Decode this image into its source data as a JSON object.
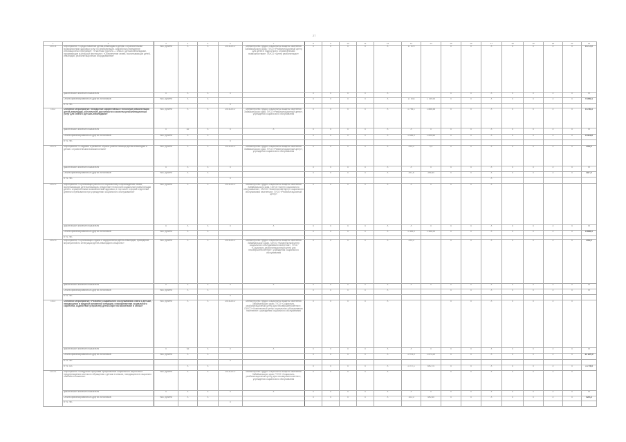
{
  "page_number": "27",
  "header": [
    "1",
    "2",
    "3",
    "4",
    "5",
    "6",
    "7",
    "8",
    "9",
    "10",
    "11",
    "12",
    "13",
    "14",
    "15",
    "16",
    "17",
    "18",
    "19",
    "20",
    "21",
    "22"
  ],
  "groups": [
    {
      "code": "1.8.1.4",
      "rows": [
        [
          "Мероприятие «Предоставление детям-инвалидам и детям с ограниченными возможностями здоровья услуг по реабилитации, разработка и внедрение инновационных программ»; «Участники проекта — семьи с детьми-инвалидами, проживающие в сельской местности»; «Обеспечение семей, воспитывающих детей-инвалидов, реабилитационным оборудованием»",
          "тыс. рублей",
          "X",
          "X",
          "2016-2017",
          "Министерство труда и социальной защиты населения Забайкальского края, ГУСО «Реабилитационный центр для детей и подростков с ограниченными возможностями», ГАУСО «Центр реабилитации»",
          "X",
          "X",
          "X",
          "X",
          "X",
          "17 570",
          "",
          "X",
          "X",
          "X",
          "X",
          "X",
          "X",
          "X",
          "8 717,0"
        ],
        [
          "фактическое значение показателя",
          "X",
          "X",
          "X",
          "X",
          "",
          "X",
          "X",
          "X",
          "X",
          "X",
          "",
          "",
          "X",
          "X",
          "X",
          "X",
          "X",
          "X",
          "X",
          "0"
        ],
        [
          "Объем финансирования из других источников",
          "тыс. рублей",
          "X",
          "X",
          "",
          "",
          "X",
          "X",
          "X",
          "X",
          "X",
          "17 643",
          "1 789,90",
          "X",
          "X",
          "X",
          "X",
          "X",
          "X",
          "X",
          "9 006,4"
        ],
        [
          "в т.ч. ФБ",
          "",
          "",
          "",
          "X",
          "",
          "",
          "",
          "",
          "",
          "",
          "",
          "",
          "",
          "",
          "",
          "",
          "",
          "",
          "",
          ""
        ]
      ]
    },
    {
      "code": "1.8.2",
      "bold": true,
      "rows": [
        [
          "Основное мероприятие «Внедрение эффективных технологий реабилитации детей-инвалидов, обеспечение доступности и качества реабилитационных услуг для семей с детьми-инвалидами»",
          "тыс. рублей",
          "X",
          "X",
          "2016-2017",
          "Министерство труда и социальной защиты населения Забайкальского края, ГУСО «Реабилитационный центр», учреждения социального обслуживания",
          "X",
          "X",
          "X",
          "X",
          "X",
          "1 796,1",
          "1 886,55",
          "X",
          "X",
          "X",
          "X",
          "X",
          "X",
          "X",
          "8 740,3"
        ],
        [
          "фактическое значение показателя",
          "X",
          "42",
          "X",
          "X",
          "X",
          "X",
          "X",
          "X",
          "X",
          "X",
          "X",
          "0",
          "X",
          "X",
          "X",
          "X",
          "X",
          "X",
          "X",
          "0"
        ],
        [
          "Объем финансирования из других источников",
          "тыс. рублей",
          "X",
          "X",
          "",
          "",
          "X",
          "X",
          "X",
          "X",
          "X",
          "1 646,9",
          "1 895,60",
          "X",
          "X",
          "X",
          "X",
          "X",
          "X",
          "X",
          "8 441,8"
        ],
        [
          "в т.ч. ФБ",
          "",
          "",
          "",
          "X",
          "",
          "",
          "",
          "",
          "",
          "",
          "",
          "",
          "",
          "",
          "",
          "",
          "",
          "",
          "",
          ""
        ]
      ]
    },
    {
      "code": "1.8.2.1",
      "rows": [
        [
          "Мероприятие «Создание и развитие службы ранней помощи детям-инвалидам и детям с ограниченными возможностями»",
          "тыс. рублей",
          "X",
          "X",
          "2016-2017",
          "Министерство труда и социальной защиты населения Забайкальского края, ГУСО «Реабилитационный центр», учреждения социального обслуживания",
          "X",
          "X",
          "X",
          "X",
          "X",
          "294,0",
          "0,0",
          "X",
          "X",
          "X",
          "X",
          "X",
          "X",
          "X",
          "294,0"
        ],
        [
          "фактическое значение показателя",
          "X",
          "X",
          "X",
          "X",
          "",
          "X",
          "X",
          "X",
          "X",
          "X",
          "X",
          "0",
          "X",
          "X",
          "X",
          "X",
          "X",
          "X",
          "X",
          "0"
        ],
        [
          "Объем финансирования из других источников",
          "тыс. рублей",
          "X",
          "X",
          "",
          "",
          "X",
          "X",
          "X",
          "X",
          "X",
          "391,8",
          "396,80",
          "X",
          "X",
          "X",
          "X",
          "X",
          "X",
          "X",
          "487,0"
        ],
        [
          "в т.ч. ФБ",
          "",
          "",
          "",
          "X",
          "",
          "",
          "",
          "",
          "",
          "",
          "",
          "",
          "",
          "",
          "X",
          "",
          "",
          "",
          "",
          ""
        ]
      ]
    },
    {
      "code": "1.8.2.2",
      "rows": [
        [
          "Мероприятие «Организация работы по социальному сопровождению семей, воспитывающих детей-инвалидов, внедрение технологий социальной реабилитации детей с ограниченными возможностями здоровья, в том числе в форме отделений дневного пребывания при учреждениях социального обслуживания»",
          "тыс. рублей",
          "X",
          "X",
          "2016-2017",
          "Министерство труда и социальной защиты населения Забайкальского края, ГАУСО «Центр социального обслуживания», ГАУСО «Комплексный центр социального обслуживания населения», ГУСО «Реабилитационный центр»",
          "X",
          "X",
          "X",
          "X",
          "X",
          "X",
          "0",
          "X",
          "X",
          "X",
          "",
          "",
          "",
          "",
          ""
        ],
        [
          "фактическое значение показателя",
          "X",
          "X",
          "X",
          "X",
          "X",
          "X",
          "X",
          "X",
          "X",
          "X",
          "X",
          "0",
          "X",
          "X",
          "X",
          "X",
          "X",
          "X",
          "X",
          "0"
        ],
        [
          "Объем финансирования из других источников",
          "тыс. рублей",
          "X",
          "X",
          "",
          "",
          "X",
          "X",
          "X",
          "X",
          "X",
          "1 384,0",
          "1 486,90",
          "X",
          "X",
          "X",
          "X",
          "X",
          "X",
          "X",
          "8 666,3"
        ],
        [
          "в т.ч. ФБ",
          "",
          "",
          "",
          "",
          "",
          "",
          "",
          "",
          "",
          "",
          "",
          "",
          "",
          "",
          "",
          "",
          "",
          "",
          "",
          ""
        ]
      ]
    },
    {
      "code": "1.8.2.3",
      "rows": [
        [
          "Мероприятие «Организация отдыха и оздоровления детей-инвалидов, проведение мероприятий по интеграции детей-инвалидов в общество»",
          "тыс. рублей",
          "X",
          "X",
          "2016-2017",
          "Министерство труда и социальной защиты населения Забайкальского края, ГАУСО «Комплексный центр социального обслуживания населения», ГУСО «Социально-реабилитационный центр для несовершеннолетних», учреждения социального обслуживания",
          "X",
          "X",
          "X",
          "X",
          "X",
          "294,0",
          "",
          "X",
          "X",
          "X",
          "X",
          "X",
          "X",
          "X",
          "294,0"
        ],
        [
          "фактическое значение показателя",
          "X",
          "X",
          "X",
          "X",
          "X",
          "X",
          "X",
          "X",
          "X",
          "X",
          "X",
          "0",
          "X",
          "X",
          "X",
          "X",
          "X",
          "X",
          "X",
          "0"
        ],
        [
          "Объем финансирования из других источников",
          "тыс. рублей",
          "X",
          "X",
          "",
          "",
          "X",
          "X",
          "X",
          "X",
          "X",
          "",
          "",
          "X",
          "X",
          "X",
          "X",
          "X",
          "X",
          "X",
          "0"
        ],
        [
          "в т.ч. ФБ",
          "",
          "",
          "",
          "X",
          "",
          "",
          "",
          "",
          "",
          "",
          "",
          "",
          "",
          "",
          "",
          "",
          "",
          "",
          "",
          ""
        ]
      ]
    },
    {
      "code": "1.8.3",
      "bold": true,
      "rows": [
        [
          "Основное мероприятие «Развитие социального обслуживания семей с детьми, находящихся в трудной жизненной ситуации, и профилактика социального сиротства, содействие устройству детей-сирот на воспитание в семьи»",
          "тыс. рублей",
          "X",
          "X",
          "2016-2017",
          "Министерство труда и социальной защиты населения Забайкальского края, ГУСО «Социально-реабилитационный центр для несовершеннолетних», ГАУСО «Комплексный центр социального обслуживания населения», учреждения социального обслуживания",
          "X",
          "X",
          "X",
          "X",
          "X",
          "",
          "",
          "X",
          "X",
          "X",
          "X",
          "X",
          "X",
          "X",
          ""
        ],
        [
          "фактическое значение показателя",
          "X",
          "63",
          "X",
          "X",
          "X",
          "X",
          "X",
          "X",
          "X",
          "X",
          "X",
          "0",
          "X",
          "X",
          "X",
          "X",
          "X",
          "X",
          "X",
          "0"
        ],
        [
          "Объем финансирования из других источников",
          "тыс. рублей",
          "X",
          "X",
          "",
          "",
          "X",
          "X",
          "X",
          "X",
          "X",
          "1 974,0",
          "1 873,20",
          "X",
          "X",
          "X",
          "X",
          "X",
          "X",
          "X",
          "11 129,0"
        ],
        [
          "в т.ч. ФБ",
          "",
          "",
          "",
          "X",
          "",
          "",
          "",
          "",
          "",
          "",
          "",
          "",
          "",
          "",
          "",
          "",
          "",
          "",
          "",
          ""
        ],
        [
          "в т.ч. ОБ",
          "",
          "X",
          "X",
          "",
          "",
          "X",
          "X",
          "X",
          "X",
          "X",
          "1 077,1",
          "690,74",
          "X",
          "X",
          "X",
          "X",
          "X",
          "X",
          "X",
          "1 779,5"
        ]
      ]
    },
    {
      "code": "1.8.3.1",
      "rows": [
        [
          "Мероприятие «Внедрение программ профилактики социального сиротства и предупреждения жестокого обращения с детьми в семьях, находящихся в социально опасном положении»",
          "тыс. рублей",
          "X",
          "X",
          "2016-2017",
          "Министерство труда и социальной защиты населения Забайкальского края, ГУСО «Социально-реабилитационный центр для несовершеннолетних», учреждения социального обслуживания",
          "X",
          "X",
          "X",
          "X",
          "X",
          "",
          "",
          "X",
          "X",
          "X",
          "X",
          "X",
          "X",
          "X",
          ""
        ],
        [
          "фактическое значение показателя",
          "X",
          "X",
          "X",
          "X",
          "X",
          "X",
          "X",
          "X",
          "X",
          "X",
          "X",
          "0",
          "X",
          "X",
          "X",
          "X",
          "X",
          "X",
          "X",
          "0"
        ],
        [
          "Объем финансирования из других источников",
          "тыс. рублей",
          "X",
          "X",
          "",
          "",
          "X",
          "X",
          "X",
          "X",
          "X",
          "101,0",
          "490,40",
          "X",
          "X",
          "X",
          "X",
          "X",
          "X",
          "X",
          "520,4"
        ],
        [
          "в т.ч. ФБ",
          "",
          "",
          "",
          "X",
          "",
          "",
          "",
          "",
          "",
          "",
          "",
          "",
          "",
          "",
          "",
          "",
          "",
          "",
          "",
          ""
        ]
      ]
    }
  ]
}
